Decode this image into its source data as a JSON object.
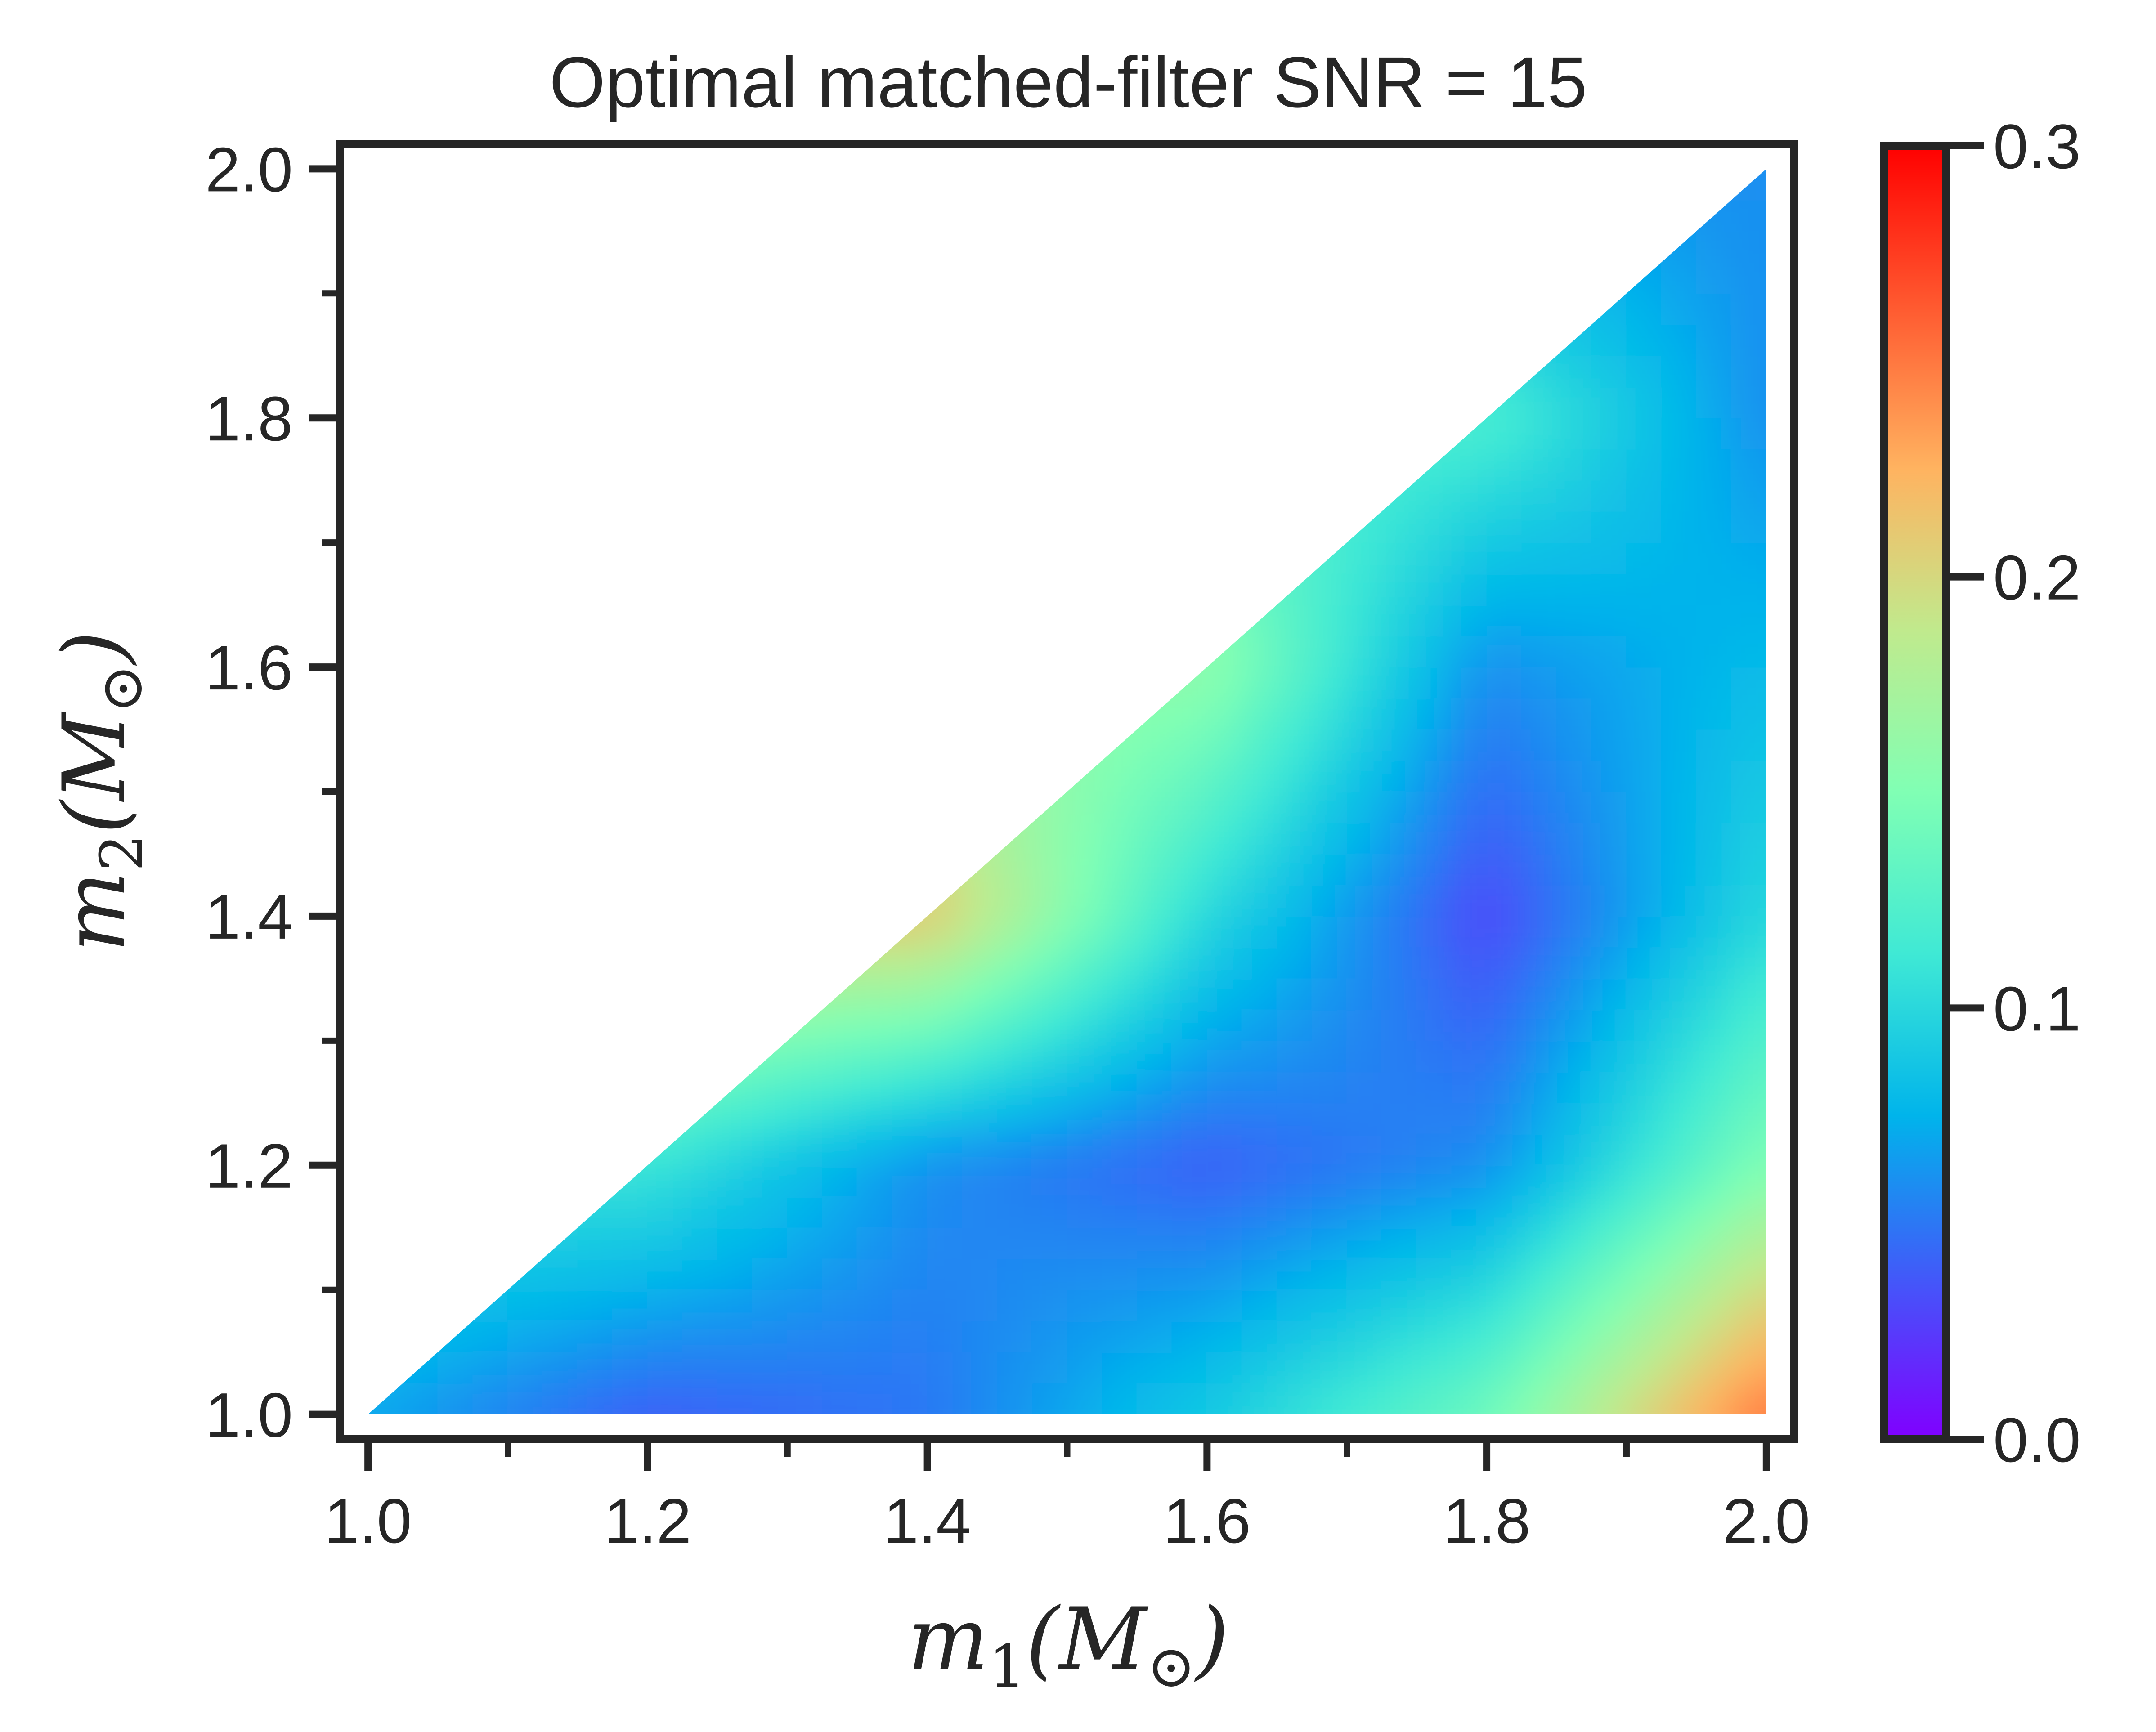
{
  "chart_data": {
    "type": "heatmap",
    "title": "Optimal matched-filter SNR = 15",
    "xlabel": {
      "var": "m",
      "sub": "1",
      "unit_open": "(",
      "unit": "M",
      "unit_sub": "⊙",
      "unit_close": ")"
    },
    "ylabel": {
      "var": "m",
      "sub": "2",
      "unit_open": "(",
      "unit": "M",
      "unit_sub": "⊙",
      "unit_close": ")"
    },
    "xlim": [
      0.98,
      2.02
    ],
    "ylim": [
      0.98,
      2.02
    ],
    "x_ticks": [
      "1.0",
      "1.2",
      "1.4",
      "1.6",
      "1.8",
      "2.0"
    ],
    "y_ticks": [
      "1.0",
      "1.2",
      "1.4",
      "1.6",
      "1.8",
      "2.0"
    ],
    "x_minor_ticks": [
      1.1,
      1.3,
      1.5,
      1.7,
      1.9
    ],
    "y_minor_ticks": [
      1.1,
      1.3,
      1.5,
      1.7,
      1.9
    ],
    "domain": "m2 <= m1, 1.0 <= m1,m2 <= 2.0",
    "colorbar": {
      "vmin": 0.0,
      "vmax": 0.3,
      "ticks": [
        "0.0",
        "0.1",
        "0.2",
        "0.3"
      ],
      "colormap": "rainbow"
    },
    "grid": {
      "m1": [
        1.0,
        1.2,
        1.4,
        1.6,
        1.8,
        2.0
      ],
      "m2": [
        1.0,
        1.2,
        1.4,
        1.6,
        1.8,
        2.0
      ],
      "values": [
        [
          0.07,
          0.04,
          0.05,
          0.09,
          0.14,
          0.25
        ],
        [
          null,
          0.11,
          0.06,
          0.04,
          0.06,
          0.15
        ],
        [
          null,
          null,
          0.21,
          0.1,
          0.03,
          0.1
        ],
        [
          null,
          null,
          null,
          0.16,
          0.06,
          0.08
        ],
        [
          null,
          null,
          null,
          null,
          0.12,
          0.06
        ],
        [
          null,
          null,
          null,
          null,
          null,
          0.06
        ]
      ]
    }
  }
}
